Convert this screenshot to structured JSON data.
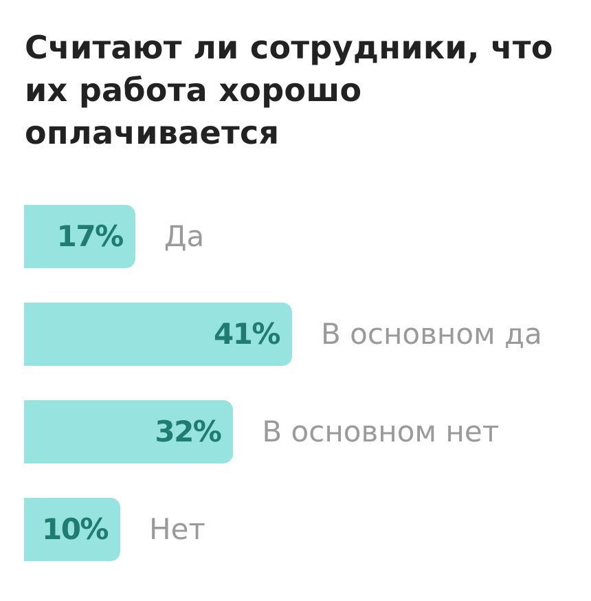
{
  "chart_data": {
    "type": "bar",
    "orientation": "horizontal",
    "title": "Считают ли сотрудники, что их работа хорошо оплачивается",
    "categories": [
      "Да",
      "В основном да",
      "В основном нет",
      "Нет"
    ],
    "values": [
      17,
      41,
      32,
      10
    ],
    "value_labels": [
      "17%",
      "41%",
      "32%",
      "10%"
    ],
    "unit": "%",
    "grid": false,
    "legend": "none",
    "colors": {
      "bar": "#97E3DF",
      "value_text": "#1E7C72",
      "label_text": "#9A9A9A",
      "title_text": "#222222"
    }
  }
}
